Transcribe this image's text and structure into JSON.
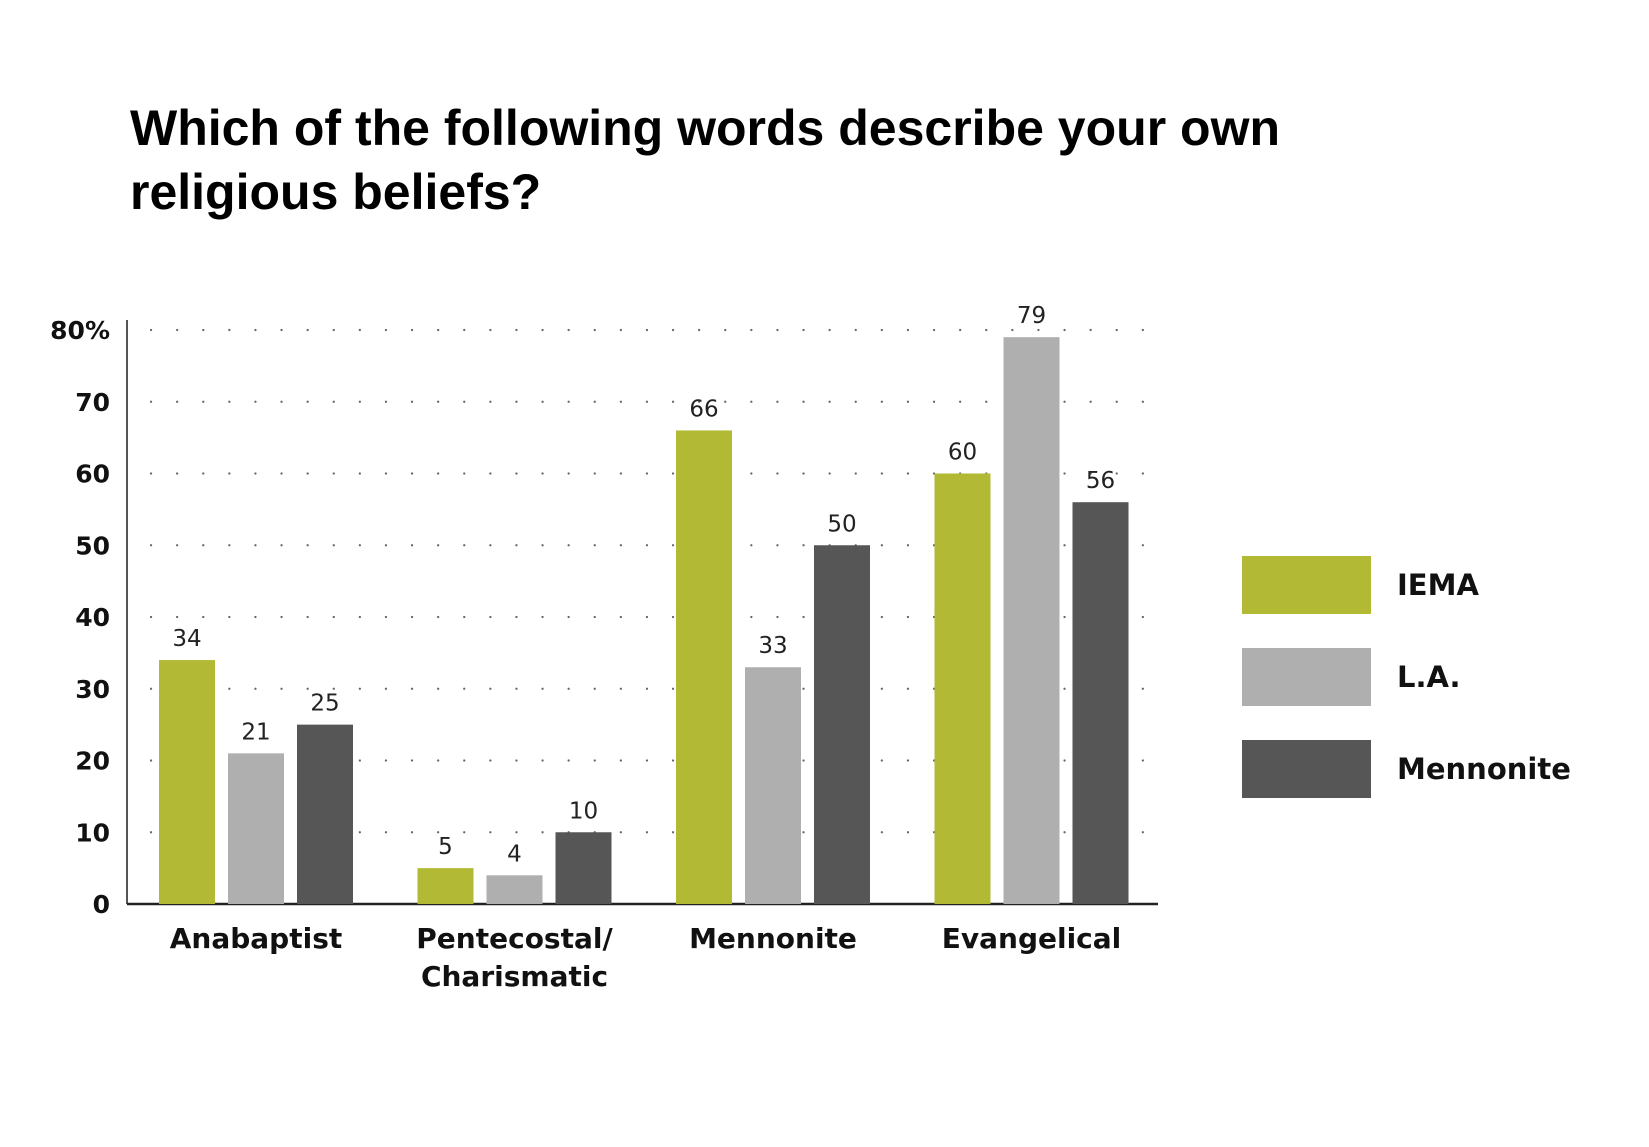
{
  "chart_data": {
    "type": "bar",
    "title_lines": [
      "Which of the following words describe your own",
      "religious beliefs?"
    ],
    "xlabel": "",
    "ylabel": "",
    "ylim": [
      0,
      80
    ],
    "y_ticks": [
      0,
      10,
      20,
      30,
      40,
      50,
      60,
      70,
      80
    ],
    "y_tick_labels": [
      "0",
      "10",
      "20",
      "30",
      "40",
      "50",
      "60",
      "70",
      "80%"
    ],
    "categories": [
      [
        "Anabaptist"
      ],
      [
        "Pentecostal/",
        "Charismatic"
      ],
      [
        "Mennonite"
      ],
      [
        "Evangelical"
      ]
    ],
    "series": [
      {
        "name": "IEMA",
        "color": "#b2b934",
        "values": [
          34,
          5,
          66,
          60
        ]
      },
      {
        "name": "L.A.",
        "color": "#afafaf",
        "values": [
          21,
          4,
          33,
          79
        ]
      },
      {
        "name": "Mennonite",
        "color": "#565656",
        "values": [
          25,
          10,
          50,
          56
        ]
      }
    ],
    "data_labels": true,
    "grid": "dotted",
    "legend_position": "right"
  }
}
